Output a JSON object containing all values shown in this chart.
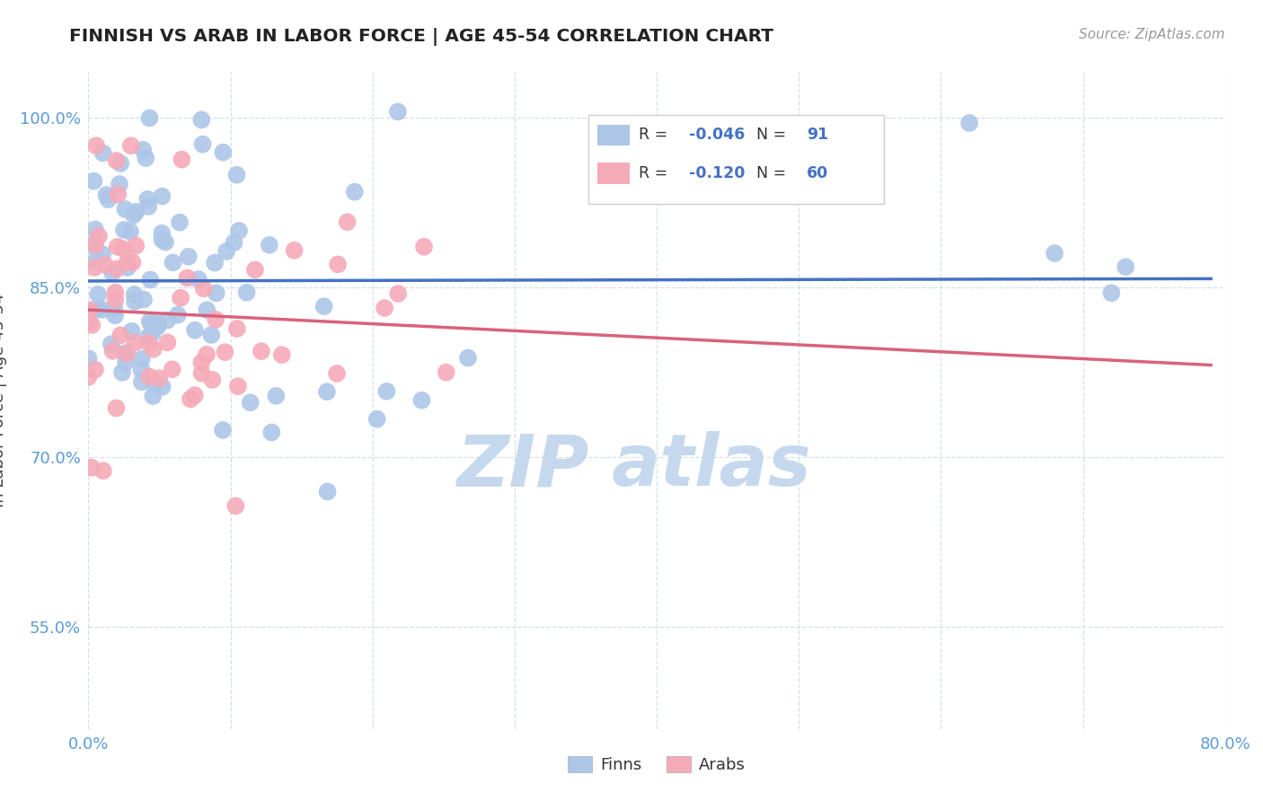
{
  "title": "FINNISH VS ARAB IN LABOR FORCE | AGE 45-54 CORRELATION CHART",
  "source_text": "Source: ZipAtlas.com",
  "ylabel": "In Labor Force | Age 45-54",
  "xlim": [
    0.0,
    0.8
  ],
  "ylim": [
    0.46,
    1.04
  ],
  "x_tick_positions": [
    0.0,
    0.1,
    0.2,
    0.3,
    0.4,
    0.5,
    0.6,
    0.7,
    0.8
  ],
  "x_tick_labels": [
    "0.0%",
    "",
    "",
    "",
    "",
    "",
    "",
    "",
    "80.0%"
  ],
  "y_tick_positions": [
    0.55,
    0.7,
    0.85,
    1.0
  ],
  "y_tick_labels": [
    "55.0%",
    "70.0%",
    "85.0%",
    "100.0%"
  ],
  "finn_R": -0.046,
  "finn_N": 91,
  "arab_R": -0.12,
  "arab_N": 60,
  "finn_color": "#adc6e8",
  "arab_color": "#f5aab8",
  "finn_line_color": "#4472c4",
  "arab_line_color": "#d9627a",
  "background_color": "#ffffff",
  "watermark_color": "#c5d8ed",
  "legend_box_color": "#f0f0f0",
  "tick_color": "#5b9bd5",
  "title_color": "#222222",
  "label_color": "#444444",
  "grid_color": "#d0dce8"
}
